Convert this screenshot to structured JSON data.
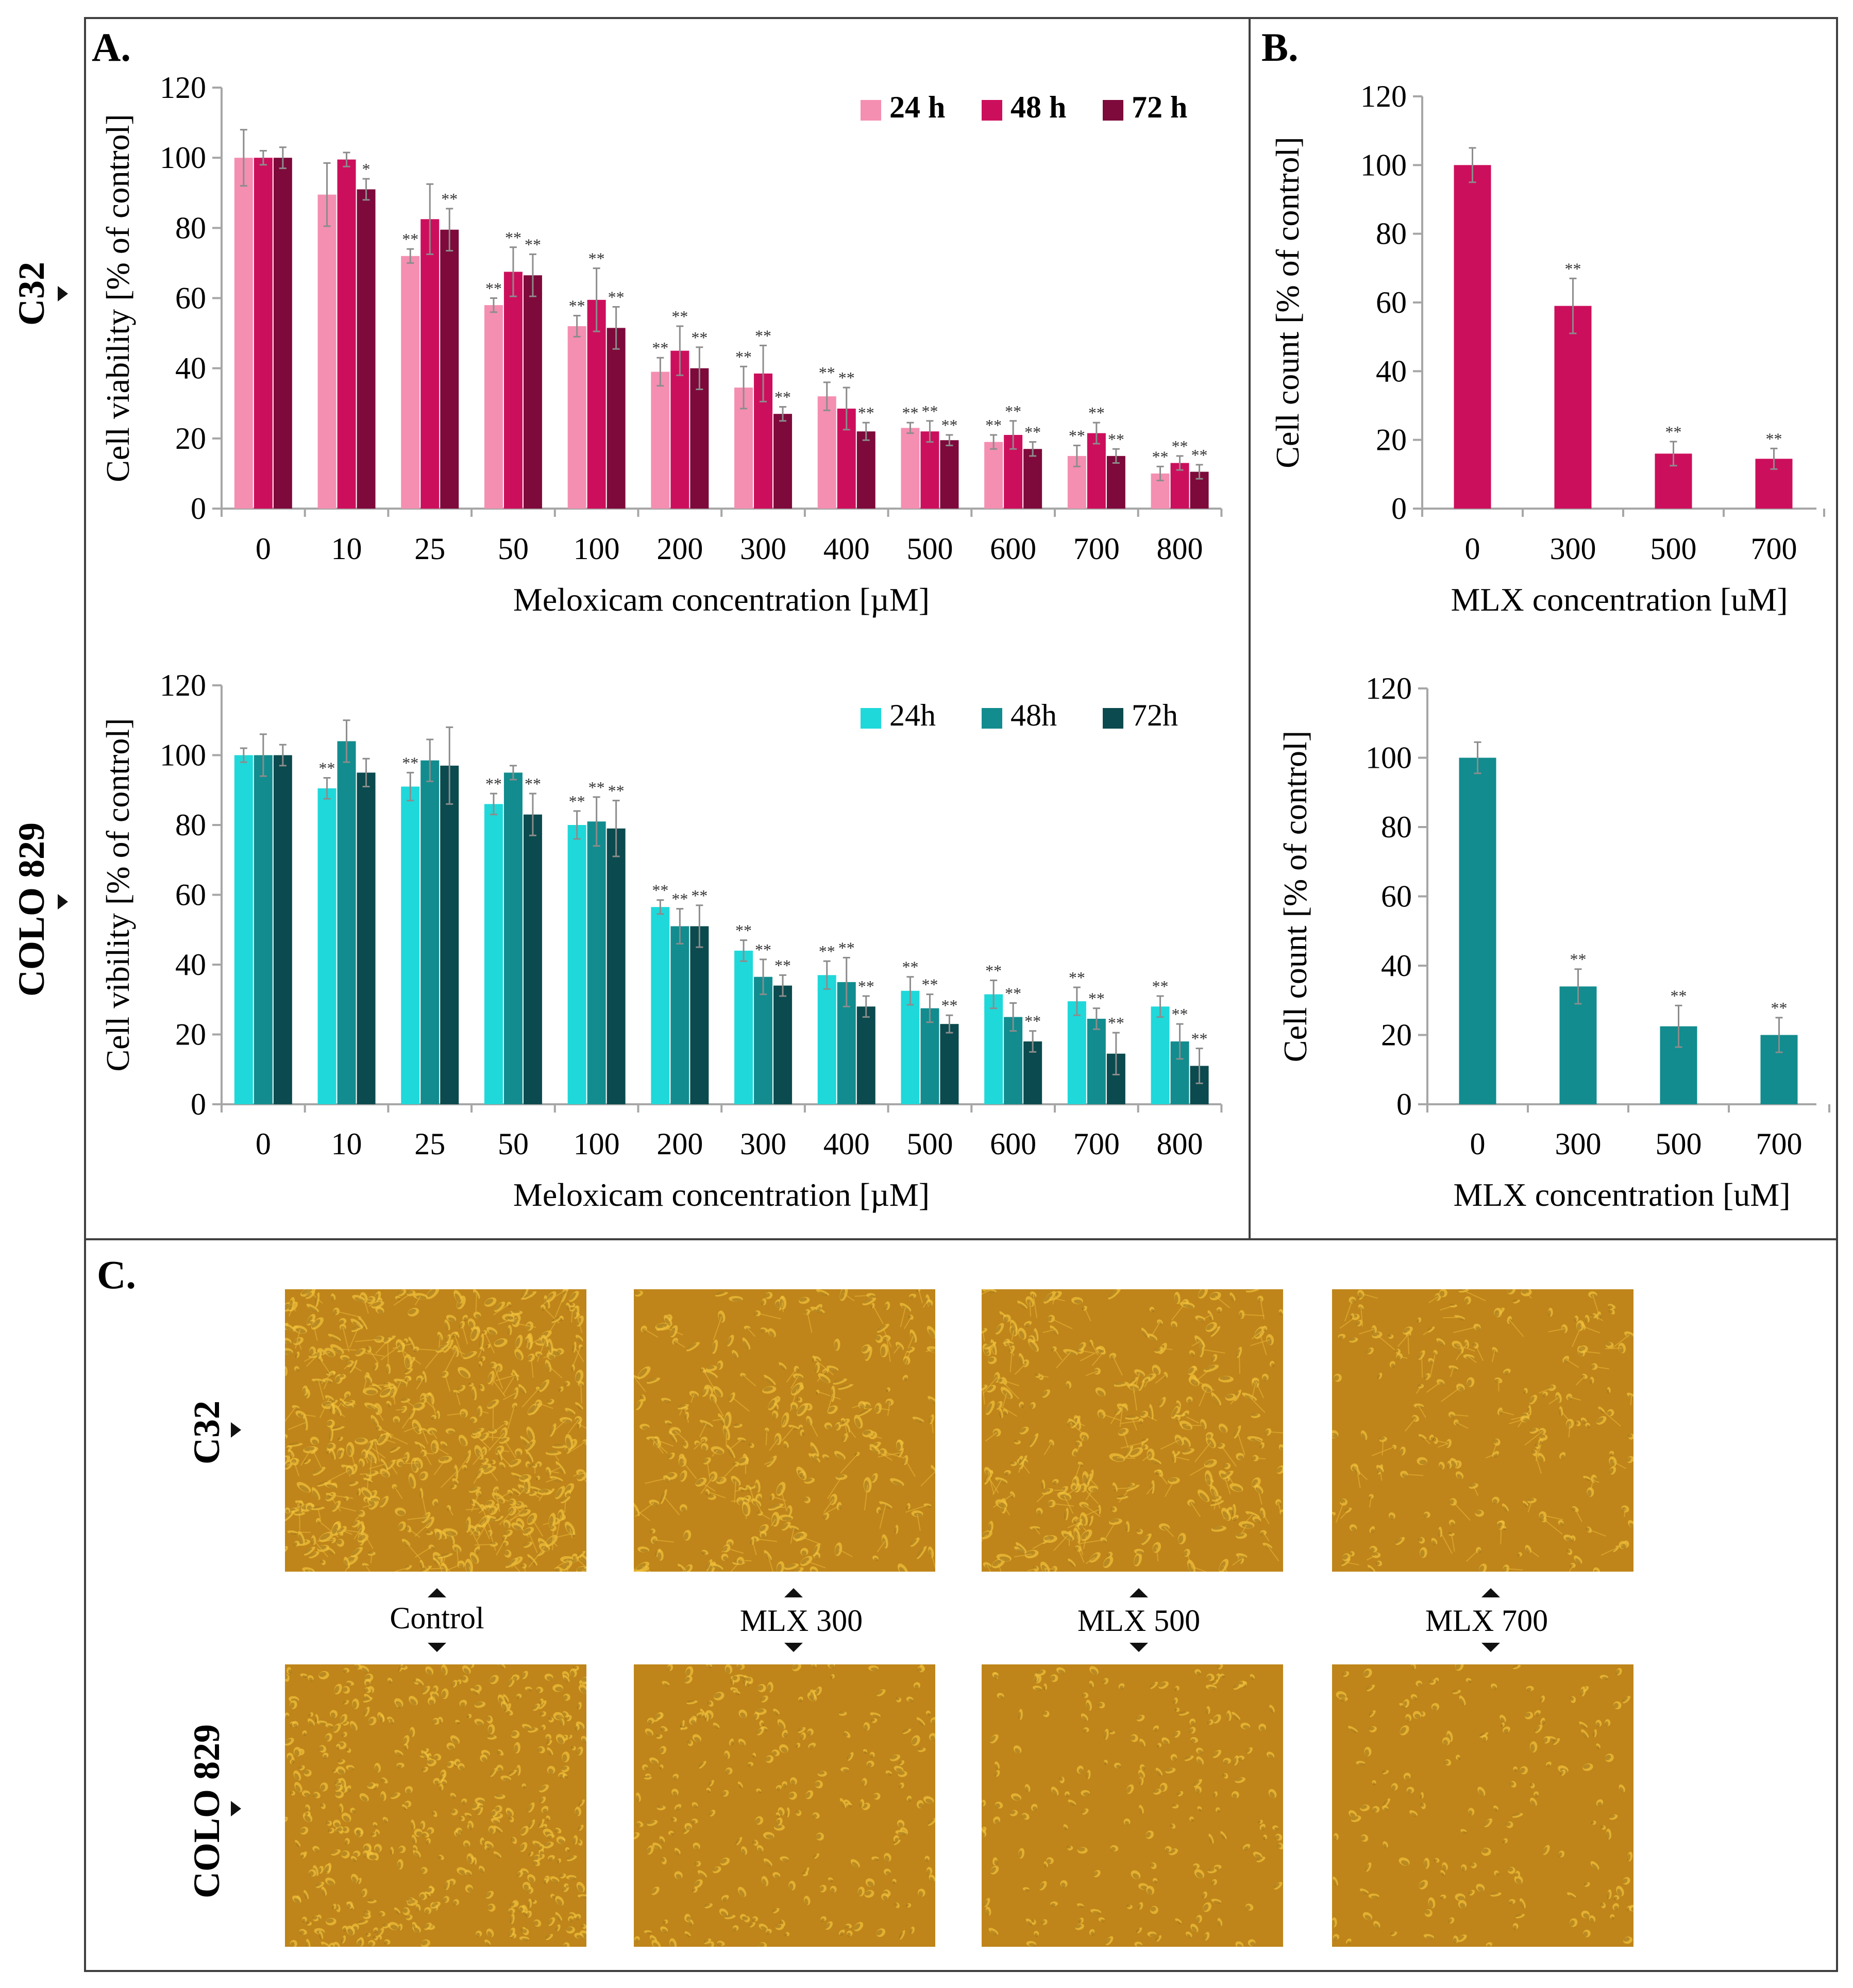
{
  "panel_labels": {
    "a": "A.",
    "b": "B.",
    "c": "C."
  },
  "row_labels": {
    "c32": "C32",
    "colo": "COLO 829"
  },
  "colors": {
    "c32_24": "#f48fb1",
    "c32_48": "#cc0f5c",
    "c32_72": "#7d0a3b",
    "colo_24": "#1fd8da",
    "colo_48": "#128c8e",
    "colo_72": "#0b4a4e",
    "axis": "#a6a6a6",
    "err": "#8c8c8c",
    "frame": "#404040",
    "micro_base": "#c98e1e"
  },
  "chart_data": [
    {
      "id": "A1",
      "type": "bar",
      "title": "",
      "xlabel": "Meloxicam concentration [µM]",
      "ylabel": "Cell viability [% of control]",
      "ylim": [
        0,
        120
      ],
      "yticks": [
        0,
        20,
        40,
        60,
        80,
        100,
        120
      ],
      "legend_position": "top-right",
      "legend_bold": true,
      "categories": [
        "0",
        "10",
        "25",
        "50",
        "100",
        "200",
        "300",
        "400",
        "500",
        "600",
        "700",
        "800"
      ],
      "series": [
        {
          "name": "24 h",
          "color_key": "c32_24",
          "values": [
            100,
            89.5,
            72,
            58,
            52,
            39,
            34.5,
            32,
            23,
            19,
            15,
            10
          ],
          "errors": [
            8,
            9,
            2,
            2,
            3,
            4,
            6,
            4,
            1.5,
            2,
            3,
            2
          ],
          "sig": [
            "",
            "",
            "**",
            "**",
            "**",
            "**",
            "**",
            "**",
            "**",
            "**",
            "**",
            "**"
          ]
        },
        {
          "name": "48 h",
          "color_key": "c32_48",
          "values": [
            100,
            99.5,
            82.5,
            67.5,
            59.5,
            45,
            38.5,
            28.5,
            22,
            21,
            21.5,
            13
          ],
          "errors": [
            2,
            2,
            10,
            7,
            9,
            7,
            8,
            6,
            3,
            4,
            3,
            2
          ],
          "sig": [
            "",
            "",
            "",
            "**",
            "**",
            "**",
            "**",
            "**",
            "**",
            "**",
            "**",
            "**"
          ]
        },
        {
          "name": "72 h",
          "color_key": "c32_72",
          "values": [
            100,
            91,
            79.5,
            66.5,
            51.5,
            40,
            27,
            22,
            19.5,
            17,
            15,
            10.5
          ],
          "errors": [
            3,
            3,
            6,
            6,
            6,
            6,
            2,
            2.5,
            1.5,
            2,
            2,
            2
          ],
          "sig": [
            "",
            "*",
            "**",
            "**",
            "**",
            "**",
            "**",
            "**",
            "**",
            "**",
            "**",
            "**"
          ]
        }
      ]
    },
    {
      "id": "B1",
      "type": "bar",
      "title": "",
      "xlabel": "MLX concentration [uM]",
      "ylabel": "Cell count [% of control]",
      "ylim": [
        0,
        120
      ],
      "yticks": [
        0,
        20,
        40,
        60,
        80,
        100,
        120
      ],
      "categories": [
        "0",
        "300",
        "500",
        "700"
      ],
      "series": [
        {
          "name": "count",
          "color_key": "c32_48",
          "values": [
            100,
            59,
            16,
            14.5
          ],
          "errors": [
            5,
            8,
            3.5,
            3
          ],
          "sig": [
            "",
            "**",
            "**",
            "**"
          ]
        }
      ]
    },
    {
      "id": "A2",
      "type": "bar",
      "title": "",
      "xlabel": "Meloxicam concentration [µM]",
      "ylabel": "Cell vibility [% of control]",
      "ylim": [
        0,
        120
      ],
      "yticks": [
        0,
        20,
        40,
        60,
        80,
        100,
        120
      ],
      "legend_position": "top-right",
      "legend_bold": false,
      "categories": [
        "0",
        "10",
        "25",
        "50",
        "100",
        "200",
        "300",
        "400",
        "500",
        "600",
        "700",
        "800"
      ],
      "series": [
        {
          "name": "24h",
          "color_key": "colo_24",
          "values": [
            100,
            90.5,
            91,
            86,
            80,
            56.5,
            44,
            37,
            32.5,
            31.5,
            29.5,
            28
          ],
          "errors": [
            2,
            3,
            4,
            3,
            4,
            2,
            3,
            4,
            4,
            4,
            4,
            3
          ],
          "sig": [
            "",
            "**",
            "**",
            "**",
            "**",
            "**",
            "**",
            "**",
            "**",
            "**",
            "**",
            "**"
          ]
        },
        {
          "name": "48h",
          "color_key": "colo_48",
          "values": [
            100,
            104,
            98.5,
            95,
            81,
            51,
            36.5,
            35,
            27.5,
            25,
            24.5,
            18
          ],
          "errors": [
            6,
            6,
            6,
            2,
            7,
            5,
            5,
            7,
            4,
            4,
            3,
            5
          ],
          "sig": [
            "",
            "",
            "",
            "",
            "**",
            "**",
            "**",
            "**",
            "**",
            "**",
            "**",
            "**"
          ]
        },
        {
          "name": "72h",
          "color_key": "colo_72",
          "values": [
            100,
            95,
            97,
            83,
            79,
            51,
            34,
            28,
            23,
            18,
            14.5,
            11
          ],
          "errors": [
            3,
            4,
            11,
            6,
            8,
            6,
            3,
            3,
            2.5,
            3,
            6,
            5
          ],
          "sig": [
            "",
            "",
            "",
            "**",
            "**",
            "**",
            "**",
            "**",
            "**",
            "**",
            "**",
            "**"
          ]
        }
      ]
    },
    {
      "id": "B2",
      "type": "bar",
      "title": "",
      "xlabel": "MLX concentration [uM]",
      "ylabel": "Cell count [% of control]",
      "ylim": [
        0,
        120
      ],
      "yticks": [
        0,
        20,
        40,
        60,
        80,
        100,
        120
      ],
      "categories": [
        "0",
        "300",
        "500",
        "700"
      ],
      "series": [
        {
          "name": "count",
          "color_key": "colo_48",
          "values": [
            100,
            34,
            22.5,
            20
          ],
          "errors": [
            4.5,
            5,
            6,
            5
          ],
          "sig": [
            "",
            "**",
            "**",
            "**"
          ]
        }
      ]
    }
  ],
  "micrographs": {
    "labels": [
      "Control",
      "MLX 300",
      "MLX 500",
      "MLX 700"
    ],
    "rows": [
      "C32",
      "COLO 829"
    ],
    "density": [
      [
        1.0,
        0.45,
        0.5,
        0.28
      ],
      [
        0.9,
        0.42,
        0.28,
        0.22
      ]
    ]
  }
}
